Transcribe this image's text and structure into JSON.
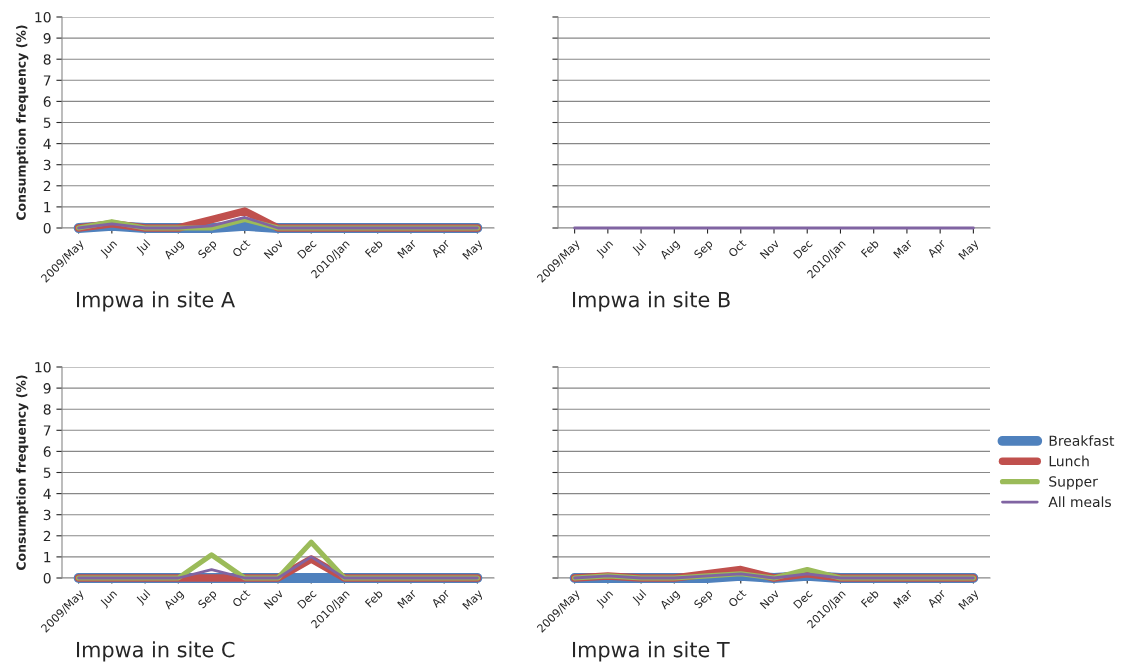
{
  "chart_data": [
    {
      "type": "line",
      "title": "Impwa in site A",
      "ylabel": "Consumption frequency (%)",
      "categories": [
        "2009/May",
        "Jun",
        "Jul",
        "Aug",
        "Sep",
        "Oct",
        "Nov",
        "Dec",
        "2010/Jan",
        "Feb",
        "Mar",
        "Apr",
        "May"
      ],
      "ylim": [
        0,
        10
      ],
      "yticks": [
        0,
        1,
        2,
        3,
        4,
        5,
        6,
        7,
        8,
        9,
        10
      ],
      "grid": "y",
      "series": [
        {
          "color": "#4f81bd",
          "values": [
            0,
            0.1,
            0,
            0,
            0,
            0.1,
            0,
            0,
            0,
            0,
            0,
            0,
            0
          ]
        },
        {
          "color": "#c0504d",
          "values": [
            0,
            0.2,
            0,
            0,
            0.4,
            0.8,
            0,
            0,
            0,
            0,
            0,
            0,
            0
          ]
        },
        {
          "color": "#9bbb59",
          "values": [
            0,
            0.3,
            0,
            0,
            0,
            0.4,
            0,
            0,
            0,
            0,
            0,
            0,
            0
          ]
        },
        {
          "color": "#8064a2",
          "values": [
            0,
            0.2,
            0,
            0,
            0.1,
            0.5,
            0,
            0,
            0,
            0,
            0,
            0,
            0
          ]
        }
      ]
    },
    {
      "type": "line",
      "title": "Impwa in site B",
      "categories": [
        "2009/May",
        "Jun",
        "Jul",
        "Aug",
        "Sep",
        "Oct",
        "Nov",
        "Dec",
        "2010/Jan",
        "Feb",
        "Mar",
        "Apr",
        "May"
      ],
      "ylim": [
        0,
        10
      ],
      "yticks": [
        0,
        1,
        2,
        3,
        4,
        5,
        6,
        7,
        8,
        9,
        10
      ],
      "tick_labels": "x",
      "grid": "y",
      "series": [
        {
          "color": "#4f81bd",
          "values": [
            null,
            null,
            null,
            null,
            null,
            null,
            null,
            null,
            null,
            null,
            null,
            null,
            null
          ]
        },
        {
          "color": "#c0504d",
          "values": [
            null,
            null,
            null,
            null,
            null,
            null,
            null,
            null,
            null,
            null,
            null,
            null,
            null
          ]
        },
        {
          "color": "#9bbb59",
          "values": [
            null,
            null,
            null,
            null,
            null,
            null,
            null,
            null,
            null,
            null,
            null,
            null,
            null
          ]
        },
        {
          "color": "#8064a2",
          "values": [
            0,
            0,
            0,
            0,
            0,
            0,
            0,
            0,
            0,
            0,
            0,
            0,
            0
          ]
        }
      ]
    },
    {
      "type": "line",
      "title": "Impwa in site C",
      "ylabel": "Consumption frequency (%)",
      "categories": [
        "2009/May",
        "Jun",
        "Jul",
        "Aug",
        "Sep",
        "Oct",
        "Nov",
        "Dec",
        "2010/Jan",
        "Feb",
        "Mar",
        "Apr",
        "May"
      ],
      "ylim": [
        0,
        10
      ],
      "yticks": [
        0,
        1,
        2,
        3,
        4,
        5,
        6,
        7,
        8,
        9,
        10
      ],
      "grid": "y",
      "series": [
        {
          "color": "#4f81bd",
          "values": [
            0,
            0,
            0,
            0,
            0,
            0,
            0,
            0,
            0,
            0,
            0,
            0,
            0
          ]
        },
        {
          "color": "#c0504d",
          "values": [
            0,
            0,
            0,
            0,
            0,
            0,
            0,
            0.9,
            0,
            0,
            0,
            0,
            0
          ]
        },
        {
          "color": "#9bbb59",
          "values": [
            0,
            0,
            0,
            0,
            1.1,
            0,
            0,
            1.7,
            0,
            0,
            0,
            0,
            0
          ]
        },
        {
          "color": "#8064a2",
          "values": [
            0,
            0,
            0,
            0,
            0.4,
            0,
            0,
            1.0,
            0,
            0,
            0,
            0,
            0
          ]
        }
      ]
    },
    {
      "type": "line",
      "title": "Impwa in site T",
      "categories": [
        "2009/May",
        "Jun",
        "Jul",
        "Aug",
        "Sep",
        "Oct",
        "Nov",
        "Dec",
        "2010/Jan",
        "Feb",
        "Mar",
        "Apr",
        "May"
      ],
      "ylim": [
        0,
        10
      ],
      "yticks": [
        0,
        1,
        2,
        3,
        4,
        5,
        6,
        7,
        8,
        9,
        10
      ],
      "tick_labels": "x",
      "grid": "y",
      "legend": "right",
      "series": [
        {
          "name": "Breakfast",
          "color": "#4f81bd",
          "values": [
            0,
            0,
            0,
            0,
            0,
            0.1,
            0,
            0.1,
            0,
            0,
            0,
            0,
            0
          ]
        },
        {
          "name": "Lunch",
          "color": "#c0504d",
          "values": [
            0,
            0.1,
            0,
            0,
            0.2,
            0.4,
            0,
            0.2,
            0,
            0,
            0,
            0,
            0
          ]
        },
        {
          "name": "Supper",
          "color": "#9bbb59",
          "values": [
            0,
            0.1,
            0,
            0,
            0.1,
            0.2,
            0,
            0.4,
            0,
            0,
            0,
            0,
            0
          ]
        },
        {
          "name": "All meals",
          "color": "#8064a2",
          "values": [
            0,
            0.1,
            0,
            0,
            0.1,
            0.2,
            0,
            0.2,
            0,
            0,
            0,
            0,
            0
          ]
        }
      ]
    }
  ]
}
